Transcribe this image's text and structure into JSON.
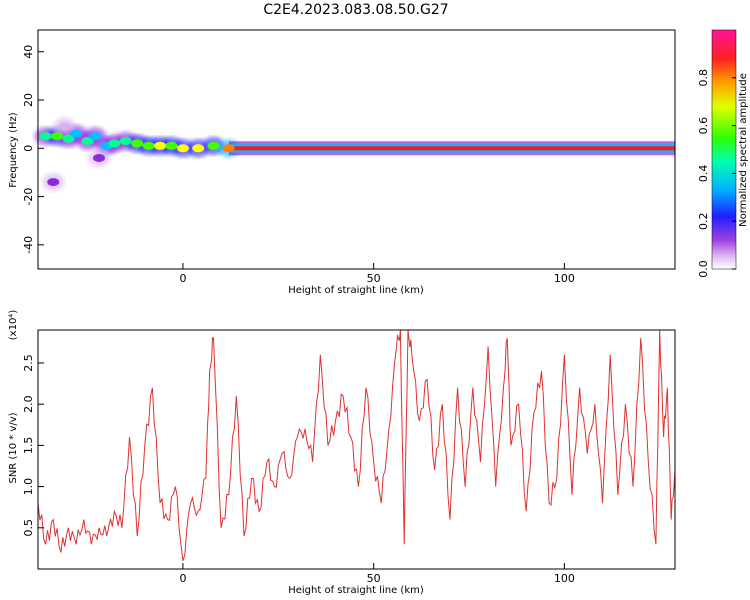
{
  "title": "C2E4.2023.083.08.50.G27",
  "chart_data": [
    {
      "type": "heatmap",
      "xlabel": "Height of straight line (km)",
      "ylabel": "Frequency (Hz)",
      "xlim": [
        -38,
        129
      ],
      "ylim": [
        -50,
        49
      ],
      "xticks": [
        0,
        50,
        100
      ],
      "yticks": [
        -40,
        -20,
        0,
        20,
        40
      ],
      "colorbar": {
        "label": "Normalized spectral amplitude",
        "range": [
          0,
          1
        ],
        "ticks": [
          "0.0",
          "0.2",
          "0.4",
          "0.6",
          "0.8"
        ],
        "tick_values": [
          0.0,
          0.2,
          0.4,
          0.6,
          0.8
        ],
        "colormap": [
          "#ffffff",
          "#d8b0f0",
          "#8a2be2",
          "#2020ff",
          "#00c0ff",
          "#00ff90",
          "#40ff00",
          "#ffff00",
          "#ff8000",
          "#ff1a1a",
          "#ff1493"
        ]
      },
      "cells": [
        {
          "x": -36,
          "y": 5,
          "v": 0.55
        },
        {
          "x": -33,
          "y": 5,
          "v": 0.6
        },
        {
          "x": -30,
          "y": 4,
          "v": 0.5
        },
        {
          "x": -28,
          "y": 6,
          "v": 0.45
        },
        {
          "x": -25,
          "y": 3,
          "v": 0.5
        },
        {
          "x": -23,
          "y": 5,
          "v": 0.4
        },
        {
          "x": -20,
          "y": 1,
          "v": 0.45
        },
        {
          "x": -18,
          "y": 2,
          "v": 0.5
        },
        {
          "x": -15,
          "y": 3,
          "v": 0.55
        },
        {
          "x": -12,
          "y": 2,
          "v": 0.6
        },
        {
          "x": -9,
          "y": 1,
          "v": 0.65
        },
        {
          "x": -6,
          "y": 1,
          "v": 0.7
        },
        {
          "x": -3,
          "y": 1,
          "v": 0.6
        },
        {
          "x": 0,
          "y": 0,
          "v": 0.75
        },
        {
          "x": 4,
          "y": 0,
          "v": 0.7
        },
        {
          "x": 8,
          "y": 1,
          "v": 0.6
        },
        {
          "x": 12,
          "y": 0,
          "v": 0.85
        },
        {
          "x": -34,
          "y": -14,
          "v": 0.2
        },
        {
          "x": -22,
          "y": -4,
          "v": 0.2
        },
        {
          "x": -31,
          "y": 9,
          "v": 0.15
        }
      ],
      "band": {
        "y": 0,
        "x_from": 12,
        "x_to": 129,
        "v": 0.9
      }
    },
    {
      "type": "line",
      "xlabel": "Height of straight line (km)",
      "ylabel": "SNR (10 * v/v)",
      "multiplier": "(x10⁴)",
      "xlim": [
        -38,
        129
      ],
      "ylim": [
        0.0,
        2.9
      ],
      "xticks": [
        0,
        50,
        100
      ],
      "yticks": [
        0.5,
        1.0,
        1.5,
        2.0,
        2.5
      ],
      "ytick_labels": [
        "0.5",
        "1.0",
        "1.5",
        "2.0",
        "2.5"
      ],
      "color": "#e03030",
      "series": [
        {
          "x": [
            -38,
            -36,
            -34,
            -32,
            -30,
            -28,
            -26,
            -24,
            -22,
            -20,
            -18,
            -16,
            -14,
            -12,
            -10,
            -8,
            -6,
            -4,
            -2,
            0,
            2,
            4,
            6,
            7,
            8,
            10,
            12,
            14,
            16,
            18,
            20,
            22,
            24,
            26,
            28,
            30,
            32,
            34,
            36,
            38,
            40,
            42,
            44,
            46,
            48,
            50,
            52,
            54,
            56,
            57,
            58,
            59,
            60,
            62,
            64,
            66,
            68,
            70,
            72,
            74,
            76,
            78,
            80,
            82,
            84,
            85,
            86,
            88,
            90,
            92,
            94,
            96,
            98,
            100,
            102,
            104,
            106,
            108,
            110,
            112,
            114,
            116,
            118,
            120,
            122,
            124,
            125,
            126,
            127,
            128,
            129
          ],
          "y": [
            0.8,
            0.3,
            0.6,
            0.2,
            0.5,
            0.3,
            0.6,
            0.3,
            0.5,
            0.4,
            0.7,
            0.5,
            1.6,
            0.4,
            1.5,
            2.2,
            0.8,
            0.6,
            1.0,
            0.1,
            0.8,
            0.7,
            1.1,
            2.4,
            2.8,
            0.5,
            0.9,
            2.1,
            0.4,
            1.1,
            0.7,
            1.3,
            1.0,
            1.4,
            1.1,
            1.6,
            1.7,
            1.3,
            2.6,
            1.5,
            1.8,
            2.1,
            1.6,
            1.0,
            2.2,
            1.3,
            0.8,
            1.7,
            2.7,
            2.9,
            0.3,
            2.9,
            2.6,
            1.8,
            2.3,
            1.2,
            2.0,
            0.6,
            2.2,
            1.0,
            2.2,
            1.3,
            2.7,
            1.0,
            2.2,
            2.8,
            1.5,
            2.0,
            0.7,
            1.9,
            2.4,
            0.8,
            1.1,
            2.6,
            0.9,
            2.2,
            1.4,
            2.0,
            0.8,
            2.6,
            0.9,
            2.0,
            1.0,
            2.8,
            1.3,
            0.3,
            2.9,
            1.6,
            2.2,
            0.6,
            1.2
          ]
        }
      ]
    }
  ]
}
